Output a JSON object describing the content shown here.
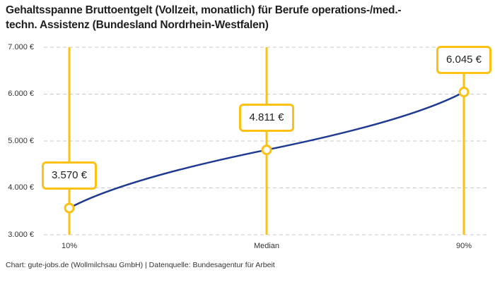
{
  "header": {
    "title_lines": [
      "Gehaltsspanne Bruttoentgelt (Vollzeit, monatlich) für Berufe operations-/med.-",
      "techn. Assistenz (Bundesland Nordrhein-Westfalen)"
    ]
  },
  "footer": {
    "credit": "Chart: gute-jobs.de (Wollmilchsau GmbH) | Datenquelle: Bundesagentur für Arbeit"
  },
  "chart_data": {
    "type": "line",
    "title": "Gehaltsspanne Bruttoentgelt (Vollzeit, monatlich) für Berufe operations-/med.-techn. Assistenz (Bundesland Nordrhein-Westfalen)",
    "categories": [
      "10%",
      "Median",
      "90%"
    ],
    "values": [
      3570,
      4811,
      6045
    ],
    "point_labels": [
      "3.570 €",
      "4.811 €",
      "6.045 €"
    ],
    "ylim": [
      3000,
      7000
    ],
    "y_ticks": [
      3000,
      4000,
      5000,
      6000,
      7000
    ],
    "y_tick_labels": [
      "3.000 €",
      "4.000 €",
      "5.000 €",
      "6.000 €",
      "7.000 €"
    ],
    "grid": "horizontal-dashed",
    "legend": "none",
    "xlabel": "",
    "ylabel": "",
    "colors": {
      "line": "#1F3A93",
      "highlight": "#FDC113",
      "grid": "#C9C9C9",
      "text": "#333333",
      "title": "#1F1F1F",
      "box_background": "#FFFFFF"
    }
  }
}
